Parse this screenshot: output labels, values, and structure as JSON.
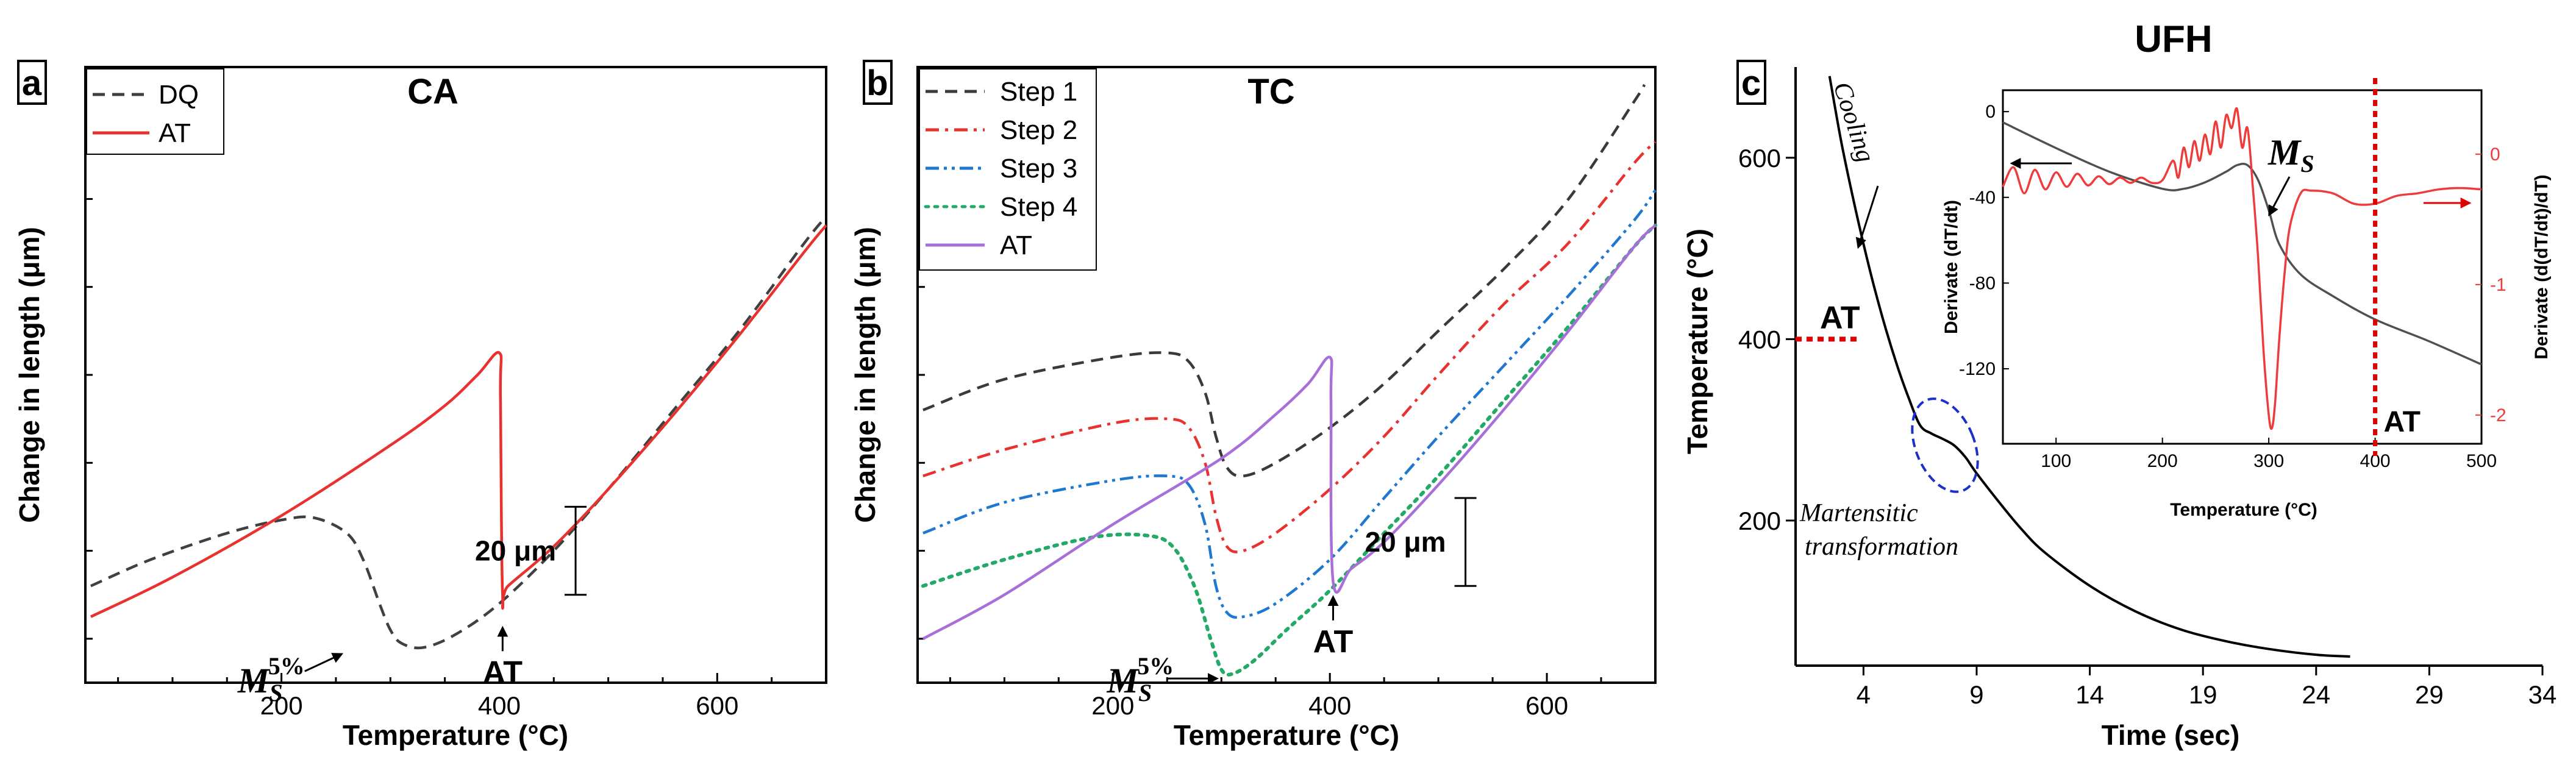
{
  "colors": {
    "dq": "#404040",
    "at_red": "#e8322f",
    "step1": "#3a3a3a",
    "step2": "#e8322f",
    "step3": "#1e78d0",
    "step4": "#22aa66",
    "at_purple": "#a86fd8",
    "cooling": "#000000",
    "inset_derivative": "#505050",
    "inset_second": "#ee3b3b",
    "marker": "#e00000",
    "ellipse": "#1c2fc8"
  },
  "chart_data": [
    {
      "panel": "a",
      "type": "line",
      "title": "CA",
      "xlabel": "Temperature (°C)",
      "ylabel": "Change in length (μm)",
      "xlim": [
        20,
        700
      ],
      "ylim": [
        0,
        140
      ],
      "xticks": [
        200,
        400,
        600
      ],
      "xtick_labels": [
        "200",
        "400",
        "600"
      ],
      "legend": [
        "DQ",
        "AT"
      ],
      "scale_bar_label": "20 μm",
      "scale_bar_um": 20,
      "scale_bar_at": [
        470,
        20
      ],
      "ms_label": "M",
      "ms_sub": "S",
      "ms_sup": "5%",
      "ms_pos": [
        255,
        4
      ],
      "at_label": "AT",
      "at_pos": [
        403,
        8
      ],
      "series": [
        {
          "name": "DQ",
          "style": "dashed",
          "color_key": "dq",
          "x": [
            25,
            80,
            150,
            200,
            230,
            260,
            275,
            290,
            300,
            310,
            330,
            360,
            400,
            450,
            500,
            560,
            620,
            680,
            700
          ],
          "y": [
            22,
            28,
            34,
            37,
            37.5,
            34,
            28,
            18,
            12,
            9,
            8,
            11,
            18,
            30,
            44,
            62,
            80,
            100,
            106
          ]
        },
        {
          "name": "AT",
          "style": "solid",
          "color_key": "at_red",
          "x": [
            25,
            100,
            200,
            300,
            350,
            380,
            400,
            401,
            403,
            408,
            450,
            500,
            560,
            620,
            680,
            700
          ],
          "y": [
            15,
            24,
            38,
            54,
            63,
            70,
            75,
            65,
            20,
            22,
            31,
            44,
            61,
            79,
            98,
            104
          ]
        }
      ]
    },
    {
      "panel": "b",
      "type": "line",
      "title": "TC",
      "xlabel": "Temperature (°C)",
      "ylabel": "Change in length (μm)",
      "xlim": [
        20,
        700
      ],
      "ylim": [
        0,
        140
      ],
      "xticks": [
        200,
        400,
        600
      ],
      "xtick_labels": [
        "200",
        "400",
        "600"
      ],
      "legend": [
        "Step 1",
        "Step 2",
        "Step 3",
        "Step 4",
        "AT"
      ],
      "scale_bar_label": "20 μm",
      "scale_bar_um": 20,
      "scale_bar_at": [
        525,
        22
      ],
      "ms_label": "M",
      "ms_sub": "S",
      "ms_sup": "5%",
      "ms_pos": [
        290,
        4
      ],
      "at_label": "AT",
      "at_pos": [
        403,
        15
      ],
      "series": [
        {
          "name": "Step 1",
          "style": "dashed",
          "color_key": "step1",
          "x": [
            25,
            100,
            200,
            250,
            270,
            285,
            295,
            305,
            320,
            350,
            400,
            450,
            500,
            560,
            620,
            680,
            690
          ],
          "y": [
            62,
            69,
            74,
            75,
            73,
            66,
            56,
            49,
            47,
            50,
            58,
            68,
            80,
            94,
            110,
            132,
            136
          ]
        },
        {
          "name": "Step 2",
          "style": "dashdot",
          "color_key": "step2",
          "x": [
            25,
            100,
            200,
            250,
            270,
            285,
            295,
            305,
            320,
            350,
            400,
            450,
            500,
            560,
            620,
            680,
            700
          ],
          "y": [
            47,
            53,
            59,
            60,
            58,
            50,
            38,
            31,
            30,
            34,
            44,
            56,
            70,
            86,
            100,
            118,
            123
          ]
        },
        {
          "name": "Step 3",
          "style": "dashdotdot",
          "color_key": "step3",
          "x": [
            25,
            100,
            200,
            250,
            270,
            285,
            295,
            305,
            320,
            350,
            400,
            450,
            500,
            560,
            620,
            680,
            700
          ],
          "y": [
            34,
            41,
            46,
            47,
            45,
            36,
            22,
            16,
            15,
            18,
            28,
            42,
            56,
            72,
            88,
            105,
            112
          ]
        },
        {
          "name": "Step 4",
          "style": "dotted",
          "color_key": "step4",
          "x": [
            25,
            100,
            180,
            230,
            255,
            275,
            290,
            300,
            310,
            330,
            360,
            400,
            450,
            500,
            560,
            620,
            680,
            700
          ],
          "y": [
            22,
            28,
            33,
            33.5,
            31,
            22,
            10,
            3,
            2,
            5,
            12,
            21,
            34,
            47,
            64,
            81,
            99,
            104
          ]
        },
        {
          "name": "AT",
          "style": "solid",
          "color_key": "at_purple",
          "x": [
            25,
            100,
            200,
            300,
            350,
            380,
            400,
            401,
            403,
            420,
            450,
            500,
            560,
            620,
            680,
            700
          ],
          "y": [
            10,
            20,
            36,
            51,
            61,
            68,
            74,
            64,
            23,
            26,
            32,
            45,
            62,
            80,
            99,
            104
          ]
        }
      ]
    },
    {
      "panel": "c",
      "type": "line",
      "title": "UFH",
      "xlabel": "Time (sec)",
      "ylabel": "Temperature (°C)",
      "xlim": [
        1,
        34
      ],
      "ylim": [
        40,
        700
      ],
      "xticks": [
        4,
        9,
        14,
        19,
        24,
        29,
        34
      ],
      "xtick_labels": [
        "4",
        "9",
        "14",
        "19",
        "24",
        "29",
        "34"
      ],
      "yticks": [
        200,
        400,
        600
      ],
      "ytick_labels": [
        "200",
        "400",
        "600"
      ],
      "at_label": "AT",
      "at_temperature": 400,
      "cooling_label": "Cooling",
      "martensitic_label_line1": "Martensitic",
      "martensitic_label_line2": "transformation",
      "series": [
        {
          "name": "Cooling",
          "style": "solid",
          "color_key": "cooling",
          "x": [
            2.5,
            3,
            3.5,
            4,
            4.5,
            5,
            5.5,
            6,
            6.5,
            7,
            7.5,
            8,
            8.5,
            9,
            10,
            11,
            12,
            14,
            16,
            18,
            20,
            22,
            24,
            25.5
          ],
          "y": [
            690,
            620,
            560,
            505,
            455,
            410,
            370,
            335,
            305,
            296,
            290,
            283,
            270,
            252,
            220,
            190,
            165,
            128,
            100,
            80,
            67,
            58,
            52,
            50
          ]
        }
      ]
    },
    {
      "panel": "c-inset",
      "type": "line",
      "xlabel": "Temperature (°C)",
      "ylabel_left": "Derivate (dT/dt)",
      "ylabel_right": "Derivate (d(dT/dt)/dT)",
      "xlim": [
        50,
        500
      ],
      "ylim_left": [
        -155,
        10
      ],
      "ylim_right": [
        -2.22,
        0.49
      ],
      "xticks": [
        100,
        200,
        300,
        400,
        500
      ],
      "xtick_labels": [
        "100",
        "200",
        "300",
        "400",
        "500"
      ],
      "yticks_left": [
        0,
        -40,
        -80,
        -120
      ],
      "ytick_labels_left": [
        "0",
        "-40",
        "-80",
        "-120"
      ],
      "yticks_right": [
        0,
        -1,
        -2
      ],
      "ytick_labels_right": [
        "0",
        "-1",
        "-2"
      ],
      "ms_label": "M",
      "ms_sub": "S",
      "at_label": "AT",
      "at_temperature": 400,
      "series": [
        {
          "name": "dT/dt",
          "axis": "left",
          "style": "solid",
          "color_key": "inset_derivative",
          "x": [
            50,
            100,
            150,
            200,
            220,
            240,
            260,
            270,
            280,
            290,
            300,
            310,
            330,
            360,
            400,
            450,
            500
          ],
          "y": [
            -5,
            -17,
            -28,
            -36,
            -36,
            -33,
            -28,
            -25,
            -25,
            -32,
            -46,
            -62,
            -76,
            -86,
            -97,
            -107,
            -118
          ]
        },
        {
          "name": "d(dT/dt)/dT",
          "axis": "right",
          "style": "solid",
          "color_key": "inset_second",
          "x": [
            50,
            60,
            70,
            80,
            90,
            100,
            110,
            120,
            130,
            140,
            150,
            160,
            170,
            180,
            190,
            200,
            210,
            215,
            220,
            225,
            230,
            235,
            240,
            245,
            250,
            255,
            260,
            265,
            270,
            275,
            280,
            285,
            290,
            295,
            300,
            303,
            306,
            310,
            315,
            320,
            330,
            340,
            360,
            380,
            400,
            420,
            440,
            460,
            480,
            500
          ],
          "y": [
            -0.25,
            -0.1,
            -0.3,
            -0.12,
            -0.27,
            -0.14,
            -0.25,
            -0.15,
            -0.24,
            -0.17,
            -0.23,
            -0.18,
            -0.22,
            -0.18,
            -0.22,
            -0.2,
            -0.05,
            -0.18,
            0.05,
            -0.1,
            0.1,
            -0.05,
            0.15,
            0.0,
            0.25,
            0.05,
            0.3,
            0.2,
            0.35,
            0.05,
            0.2,
            -0.25,
            -0.8,
            -1.5,
            -2.0,
            -2.1,
            -1.9,
            -1.4,
            -0.9,
            -0.55,
            -0.3,
            -0.28,
            -0.3,
            -0.38,
            -0.38,
            -0.32,
            -0.3,
            -0.27,
            -0.26,
            -0.27
          ]
        }
      ]
    }
  ]
}
